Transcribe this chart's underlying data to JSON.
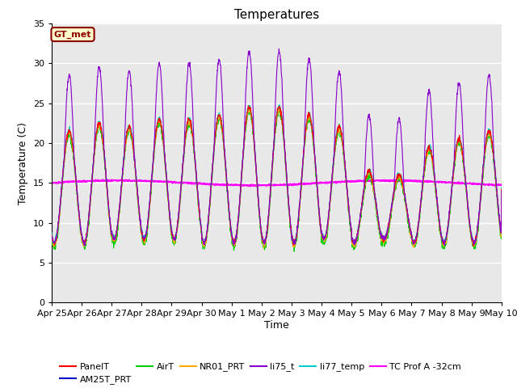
{
  "title": "Temperatures",
  "xlabel": "Time",
  "ylabel": "Temperature (C)",
  "ylim": [
    0,
    35
  ],
  "background_color": "#e8e8e8",
  "grid_color": "white",
  "annotation_text": "GT_met",
  "annotation_bg": "#ffffcc",
  "annotation_border": "#8B0000",
  "annotation_text_color": "#8B0000",
  "series": {
    "PanelT": {
      "color": "#ff0000"
    },
    "AM25T_PRT": {
      "color": "#0000cc"
    },
    "AirT": {
      "color": "#00cc00"
    },
    "NR01_PRT": {
      "color": "#ffaa00"
    },
    "li75_t": {
      "color": "#8800cc"
    },
    "li77_temp": {
      "color": "#00cccc"
    },
    "TC Prof A -32cm": {
      "color": "#ff00ff"
    }
  },
  "xtick_labels": [
    "Apr 25",
    "Apr 26",
    "Apr 27",
    "Apr 28",
    "Apr 29",
    "Apr 30",
    "May 1",
    "May 2",
    "May 3",
    "May 4",
    "May 5",
    "May 6",
    "May 7",
    "May 8",
    "May 9",
    "May 10"
  ],
  "ytick_values": [
    0,
    5,
    10,
    15,
    20,
    25,
    30,
    35
  ],
  "legend_order": [
    "PanelT",
    "AM25T_PRT",
    "AirT",
    "NR01_PRT",
    "li75_t",
    "li77_temp",
    "TC Prof A -32cm"
  ]
}
